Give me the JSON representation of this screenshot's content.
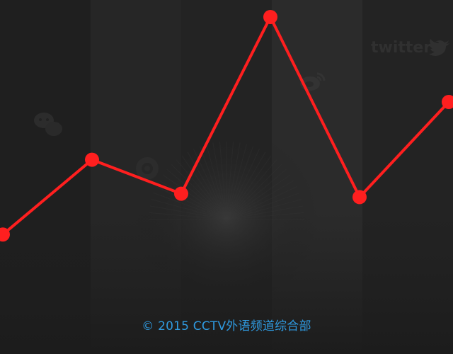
{
  "chart_data": {
    "type": "line",
    "title": "",
    "xlabel": "",
    "ylabel": "",
    "x": [
      0,
      1,
      2,
      3,
      4,
      5
    ],
    "ylim": [
      0,
      100
    ],
    "grid": false,
    "legend": "none",
    "series": [
      {
        "color": "#ff1f1f",
        "values": [
          31,
          53,
          43,
          95,
          42,
          70
        ]
      }
    ]
  },
  "background": {
    "base_color": "#1f1f1f",
    "band_colors": [
      "#1f1f1f",
      "#262626",
      "#232323",
      "#2b2b2b",
      "#232323"
    ],
    "icons": [
      "wechat-icon",
      "camera-icon",
      "weibo-icon",
      "twitter-icon"
    ]
  },
  "footer": {
    "copyright": "© 2015 CCTV外语频道综合部",
    "color": "#2f9ae0"
  },
  "watermark": {
    "twitter_text": "twitter"
  }
}
